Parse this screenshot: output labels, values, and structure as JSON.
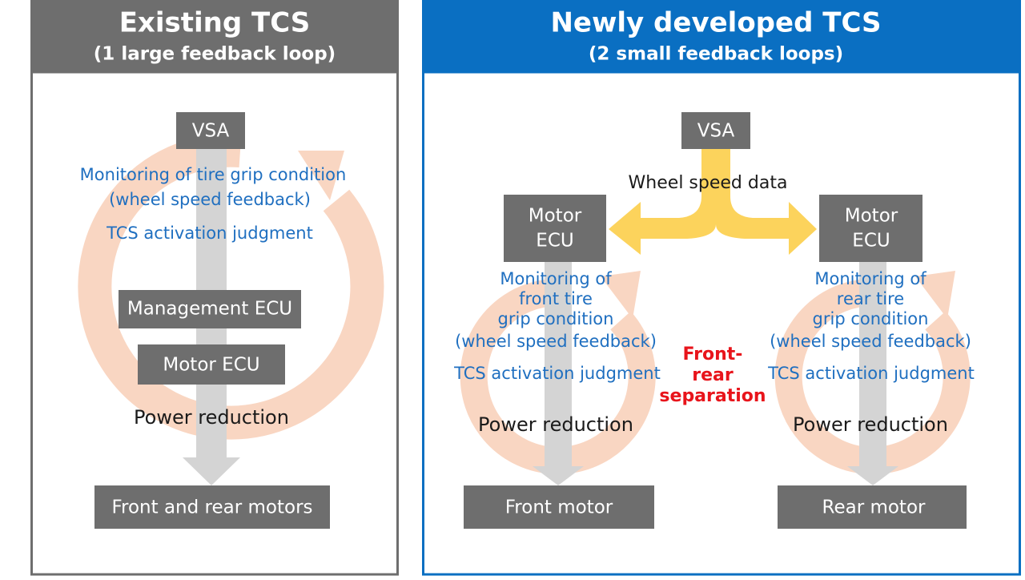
{
  "left": {
    "title": "Existing TCS",
    "subtitle": "(1 large feedback loop)",
    "vsa": "VSA",
    "monitoring": [
      "Monitoring of tire grip condition",
      "(wheel speed feedback)"
    ],
    "judgment": "TCS activation judgment",
    "management_ecu": "Management ECU",
    "motor_ecu": "Motor ECU",
    "power": "Power reduction",
    "motors": "Front and rear motors"
  },
  "right": {
    "title": "Newly developed TCS",
    "subtitle": "(2 small feedback loops)",
    "vsa": "VSA",
    "wheel_speed": "Wheel speed data",
    "separation": [
      "Front-",
      "rear",
      "separation"
    ],
    "front": {
      "ecu": [
        "Motor",
        "ECU"
      ],
      "monitoring": [
        "Monitoring of",
        "front tire",
        "grip condition",
        "(wheel speed feedback)"
      ],
      "judgment": "TCS activation judgment",
      "power": "Power reduction",
      "motor": "Front motor"
    },
    "rear": {
      "ecu": [
        "Motor",
        "ECU"
      ],
      "monitoring": [
        "Monitoring of",
        "rear tire",
        "grip condition",
        "(wheel speed feedback)"
      ],
      "judgment": "TCS activation judgment",
      "power": "Power reduction",
      "motor": "Rear motor"
    }
  }
}
